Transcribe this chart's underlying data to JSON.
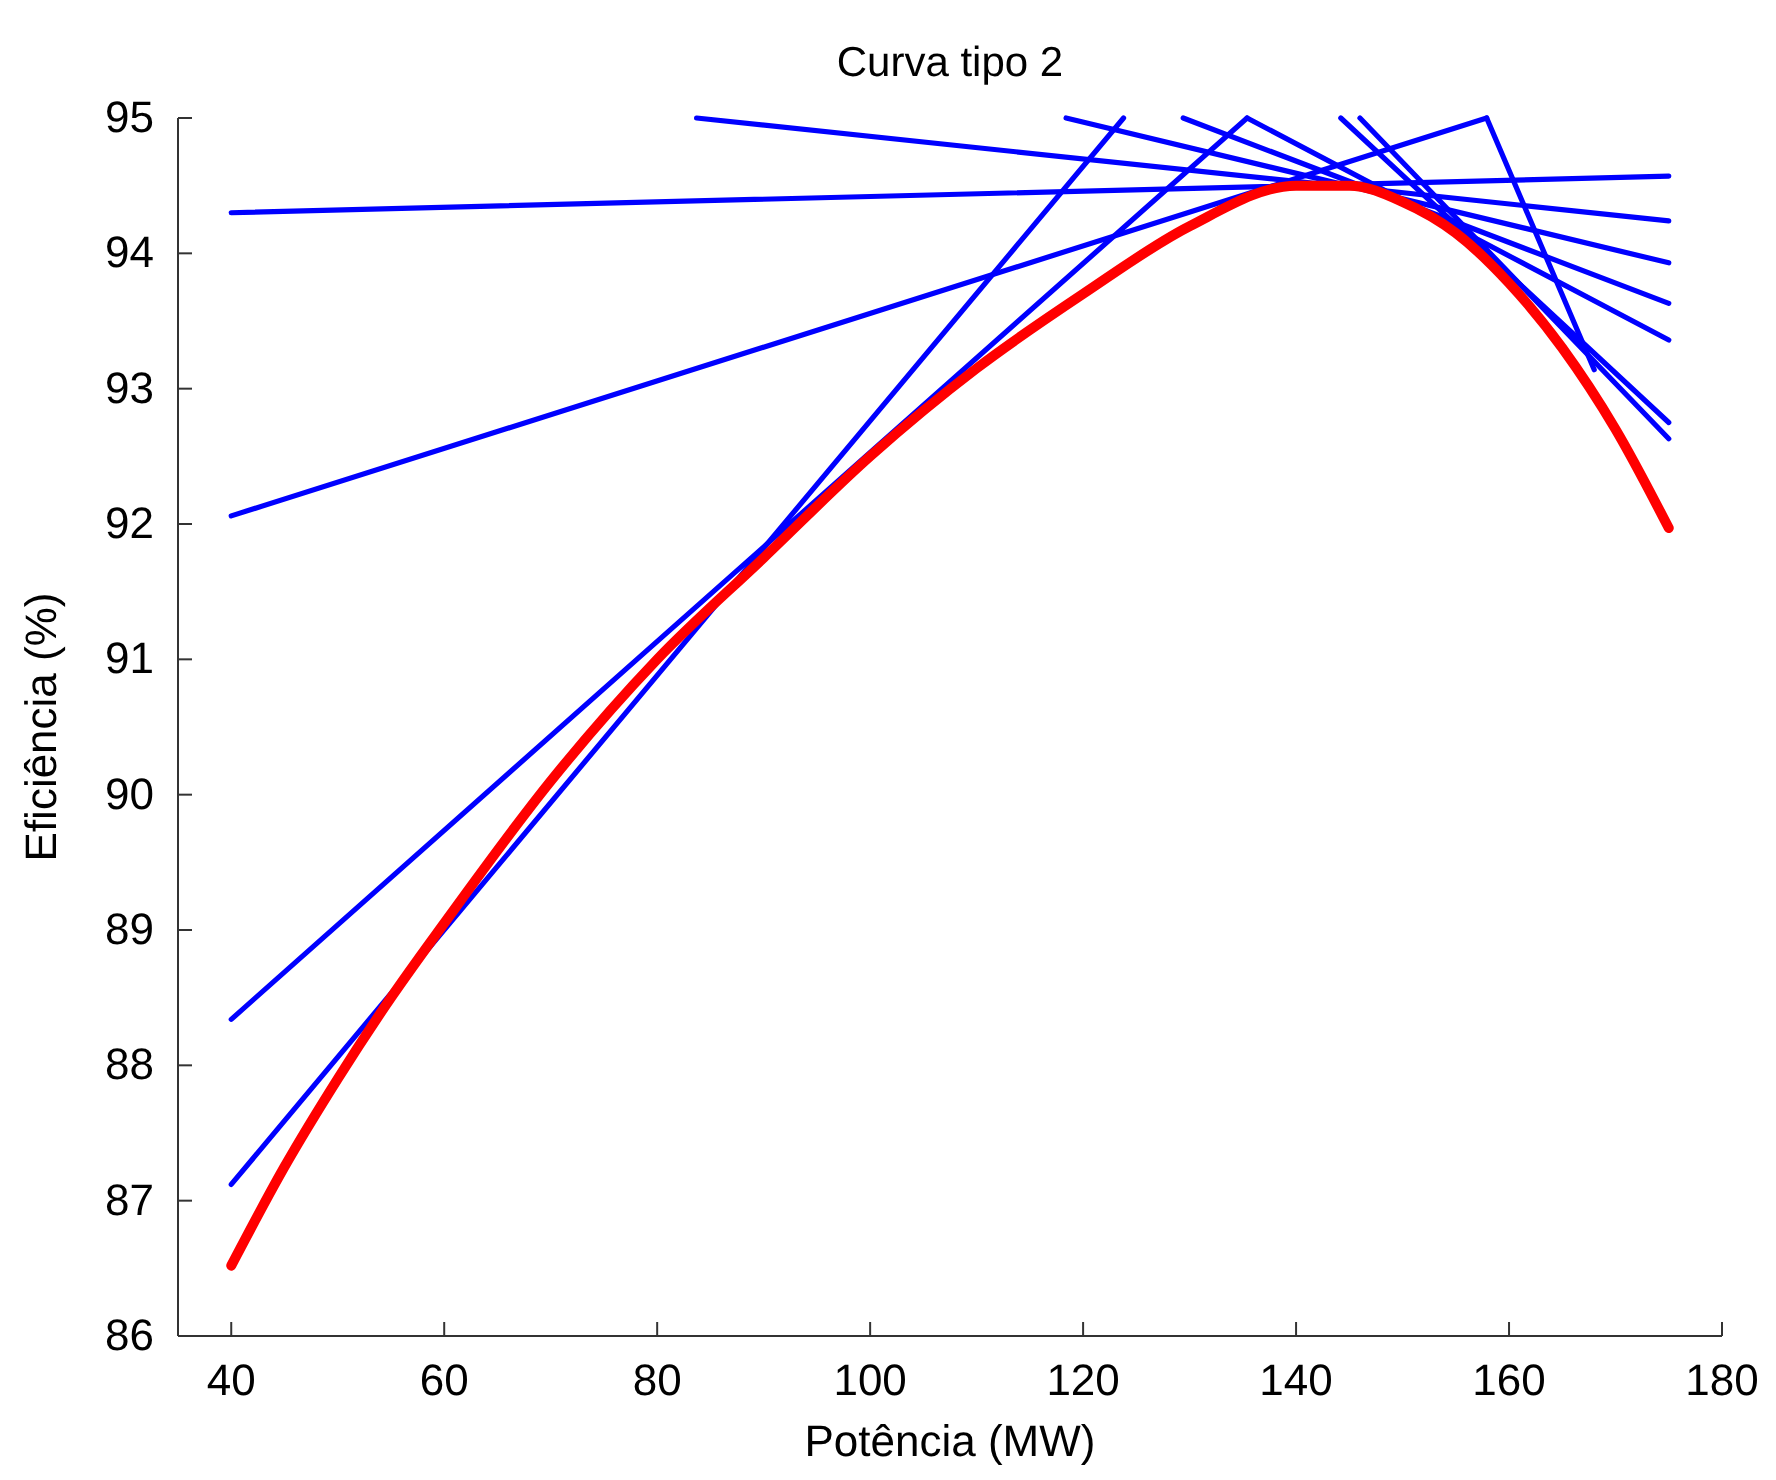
{
  "chart_data": {
    "type": "line",
    "title": "Curva tipo 2",
    "xlabel": "Potência (MW)",
    "ylabel": "Eficiência (%)",
    "xlim": [
      35,
      180
    ],
    "ylim": [
      86,
      95
    ],
    "xticks": [
      40,
      60,
      80,
      100,
      120,
      140,
      160,
      180
    ],
    "yticks": [
      86,
      87,
      88,
      89,
      90,
      91,
      92,
      93,
      94,
      95
    ],
    "grid": false,
    "line_style": "solid",
    "marker": "none",
    "series": [
      {
        "color": "#0000ff",
        "x": [
          40,
          123.8
        ],
        "values": [
          87.12,
          95
        ]
      },
      {
        "color": "#0000ff",
        "x": [
          40,
          135.4
        ],
        "values": [
          88.34,
          95
        ]
      },
      {
        "color": "#0000ff",
        "x": [
          40,
          157.9
        ],
        "values": [
          92.06,
          95
        ]
      },
      {
        "color": "#0000ff",
        "x": [
          40,
          175
        ],
        "values": [
          94.3,
          94.57
        ]
      },
      {
        "color": "#0000ff",
        "x": [
          83.7,
          175
        ],
        "values": [
          95,
          94.24
        ]
      },
      {
        "color": "#0000ff",
        "x": [
          118.4,
          175
        ],
        "values": [
          95,
          93.93
        ]
      },
      {
        "color": "#0000ff",
        "x": [
          129.4,
          175
        ],
        "values": [
          95,
          93.63
        ]
      },
      {
        "color": "#0000ff",
        "x": [
          135.4,
          175
        ],
        "values": [
          95,
          93.36
        ]
      },
      {
        "color": "#0000ff",
        "x": [
          144.2,
          175
        ],
        "values": [
          95,
          92.75
        ]
      },
      {
        "color": "#0000ff",
        "x": [
          146,
          175
        ],
        "values": [
          95,
          92.63
        ]
      },
      {
        "color": "#0000ff",
        "x": [
          157.9,
          168
        ],
        "values": [
          95,
          93.14
        ]
      },
      {
        "color": "#ff0000",
        "x": [
          40,
          45,
          50,
          55,
          60,
          70,
          80,
          90,
          100,
          110,
          120,
          130,
          140,
          145,
          150,
          155,
          160,
          165,
          170,
          175
        ],
        "values": [
          86.52,
          87.25,
          87.9,
          88.5,
          89.05,
          90.1,
          91.0,
          91.75,
          92.5,
          93.15,
          93.7,
          94.2,
          94.5,
          94.5,
          94.38,
          94.15,
          93.78,
          93.3,
          92.7,
          91.97
        ]
      }
    ]
  }
}
